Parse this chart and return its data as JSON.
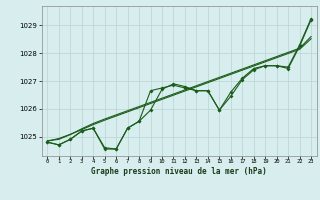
{
  "title": "Graphe pression niveau de la mer (hPa)",
  "bg_color": "#d8eeee",
  "grid_color": "#b8d4d4",
  "line_color": "#1a5c1a",
  "xlim": [
    -0.5,
    23.5
  ],
  "ylim": [
    1024.3,
    1029.7
  ],
  "yticks": [
    1025,
    1026,
    1027,
    1028,
    1029
  ],
  "xticks": [
    0,
    1,
    2,
    3,
    4,
    5,
    6,
    7,
    8,
    9,
    10,
    11,
    12,
    13,
    14,
    15,
    16,
    17,
    18,
    19,
    20,
    21,
    22,
    23
  ],
  "series1": [
    1024.8,
    1024.7,
    1024.9,
    1025.2,
    1025.3,
    1024.6,
    1024.55,
    1025.3,
    1025.55,
    1026.65,
    1026.75,
    1026.85,
    1026.75,
    1026.65,
    1026.65,
    1025.95,
    1026.6,
    1027.1,
    1027.45,
    1027.55,
    1027.55,
    1027.5,
    1028.3,
    1029.25
  ],
  "series2": [
    1024.8,
    1024.7,
    1024.9,
    1025.2,
    1025.3,
    1024.55,
    1024.55,
    1025.3,
    1025.55,
    1025.95,
    1026.7,
    1026.9,
    1026.8,
    1026.65,
    1026.65,
    1025.95,
    1026.45,
    1027.05,
    1027.4,
    1027.55,
    1027.55,
    1027.45,
    1028.25,
    1029.2
  ],
  "series3": [
    1024.85,
    1024.9,
    1025.07,
    1025.28,
    1025.47,
    1025.63,
    1025.78,
    1025.93,
    1026.08,
    1026.23,
    1026.38,
    1026.53,
    1026.68,
    1026.83,
    1026.98,
    1027.13,
    1027.28,
    1027.43,
    1027.58,
    1027.73,
    1027.88,
    1028.03,
    1028.18,
    1028.6
  ],
  "series4": [
    1024.83,
    1024.93,
    1025.08,
    1025.25,
    1025.43,
    1025.59,
    1025.74,
    1025.89,
    1026.04,
    1026.19,
    1026.34,
    1026.49,
    1026.64,
    1026.79,
    1026.94,
    1027.09,
    1027.24,
    1027.39,
    1027.54,
    1027.69,
    1027.84,
    1027.99,
    1028.14,
    1028.52
  ]
}
